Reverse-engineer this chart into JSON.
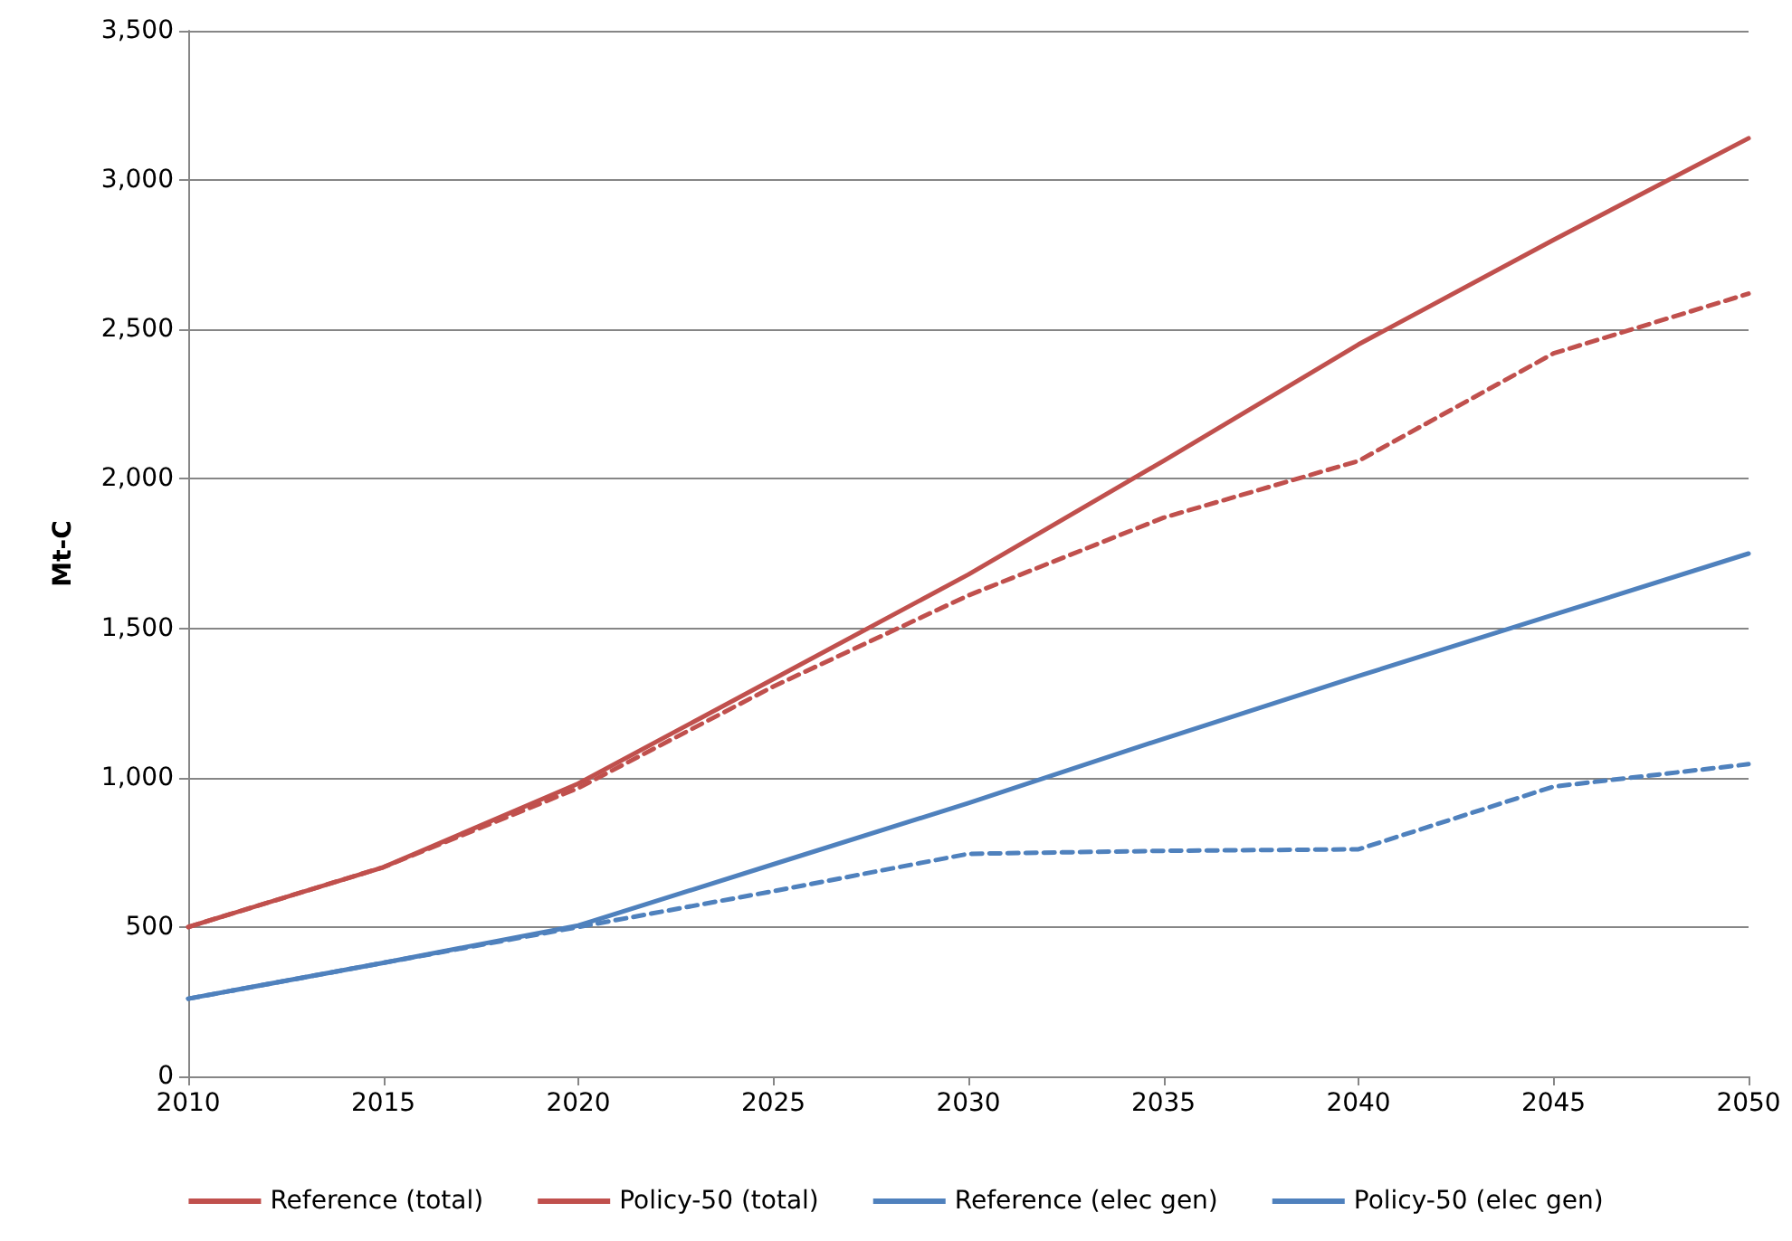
{
  "chart_data": {
    "type": "line",
    "ylabel": "Mt-C",
    "x": [
      2010,
      2015,
      2020,
      2025,
      2030,
      2035,
      2040,
      2045,
      2050
    ],
    "xlim": [
      2010,
      2050
    ],
    "xticks": [
      2010,
      2015,
      2020,
      2025,
      2030,
      2035,
      2040,
      2045,
      2050
    ],
    "ylim": [
      0,
      3500
    ],
    "yticks": [
      {
        "value": 0,
        "label": "0"
      },
      {
        "value": 500,
        "label": "500"
      },
      {
        "value": 1000,
        "label": "1,000"
      },
      {
        "value": 1500,
        "label": "1,500"
      },
      {
        "value": 2000,
        "label": "2,000"
      },
      {
        "value": 2500,
        "label": "2,500"
      },
      {
        "value": 3000,
        "label": "3,000"
      },
      {
        "value": 3500,
        "label": "3,500"
      }
    ],
    "grid": "y",
    "legend": "bottom",
    "marker": "none",
    "series": [
      {
        "name": "Reference (total)",
        "color": "#c0504d",
        "line_style": "solid",
        "values": [
          500,
          700,
          980,
          1330,
          1680,
          2060,
          2450,
          2800,
          3140
        ]
      },
      {
        "name": "Policy-50 (total)",
        "color": "#c0504d",
        "line_style": "dashed",
        "values": [
          500,
          700,
          965,
          1305,
          1610,
          1870,
          2060,
          2420,
          2620
        ]
      },
      {
        "name": "Reference (elec gen)",
        "color": "#4f81bd",
        "line_style": "solid",
        "values": [
          260,
          380,
          505,
          710,
          915,
          1130,
          1340,
          1545,
          1750
        ]
      },
      {
        "name": "Policy-50 (elec gen)",
        "color": "#4f81bd",
        "line_style": "dashed",
        "values": [
          260,
          380,
          500,
          620,
          745,
          755,
          760,
          970,
          1045
        ]
      }
    ]
  }
}
